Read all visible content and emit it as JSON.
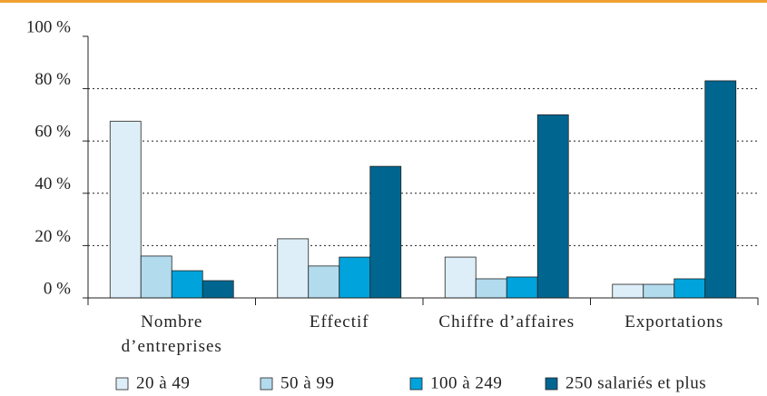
{
  "chart_data": {
    "type": "bar",
    "categories": [
      "Nombre d’entreprises",
      "Effectif",
      "Chiffre d’affaires",
      "Exportations"
    ],
    "series": [
      {
        "name": "20 à 49",
        "color": "#ddeef8",
        "values": [
          67.5,
          22.6,
          15.6,
          5.2
        ]
      },
      {
        "name": "50 à 99",
        "color": "#b3dbee",
        "values": [
          16,
          12.2,
          7.3,
          5.2
        ]
      },
      {
        "name": "100 à 249",
        "color": "#00a3dc",
        "values": [
          10.4,
          15.6,
          8,
          7.3
        ]
      },
      {
        "name": "250 salariés et plus",
        "color": "#006690",
        "values": [
          6.6,
          50.3,
          70,
          83
        ]
      }
    ],
    "ylim": [
      0,
      100
    ],
    "yticks": [
      {
        "value": 0,
        "label": "0 %"
      },
      {
        "value": 20,
        "label": "20 %"
      },
      {
        "value": 40,
        "label": "40 %"
      },
      {
        "value": 60,
        "label": "60 %"
      },
      {
        "value": 80,
        "label": "80 %"
      },
      {
        "value": 100,
        "label": "100 %"
      }
    ],
    "grid": true
  }
}
